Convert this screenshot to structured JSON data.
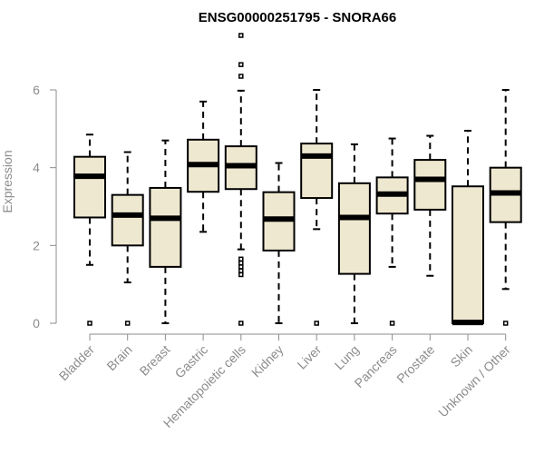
{
  "chart_data": {
    "type": "boxplot",
    "title": "ENSG00000251795 - SNORA66",
    "xlabel": "",
    "ylabel": "Expression",
    "ylim": [
      0,
      7.4
    ],
    "yticks": [
      0,
      2,
      4,
      6
    ],
    "box_fill": "#efe8d0",
    "stroke": "#000000",
    "axis_color": "#8c8c8c",
    "categories": [
      "Bladder",
      "Brain",
      "Breast",
      "Gastric",
      "Hematopoietic cells",
      "Kidney",
      "Liver",
      "Lung",
      "Pancreas",
      "Prostate",
      "Skin",
      "Unknown / Other"
    ],
    "boxes": [
      {
        "whisker_low": 1.5,
        "q1": 2.72,
        "median": 3.78,
        "q3": 4.28,
        "whisker_high": 4.85,
        "outliers": [
          0
        ]
      },
      {
        "whisker_low": 1.05,
        "q1": 2.0,
        "median": 2.78,
        "q3": 3.3,
        "whisker_high": 4.4,
        "outliers": [
          0
        ]
      },
      {
        "whisker_low": 0.0,
        "q1": 1.45,
        "median": 2.7,
        "q3": 3.48,
        "whisker_high": 4.7,
        "outliers": []
      },
      {
        "whisker_low": 2.35,
        "q1": 3.38,
        "median": 4.08,
        "q3": 4.72,
        "whisker_high": 5.7,
        "outliers": []
      },
      {
        "whisker_low": 1.9,
        "q1": 3.45,
        "median": 4.05,
        "q3": 4.55,
        "whisker_high": 5.98,
        "outliers": [
          0,
          1.25,
          1.35,
          1.45,
          1.55,
          1.65,
          6.35,
          6.65,
          7.4
        ]
      },
      {
        "whisker_low": 0.0,
        "q1": 1.87,
        "median": 2.68,
        "q3": 3.37,
        "whisker_high": 4.12,
        "outliers": []
      },
      {
        "whisker_low": 2.42,
        "q1": 3.22,
        "median": 4.3,
        "q3": 4.62,
        "whisker_high": 6.0,
        "outliers": [
          0
        ]
      },
      {
        "whisker_low": 0.0,
        "q1": 1.27,
        "median": 2.72,
        "q3": 3.6,
        "whisker_high": 4.6,
        "outliers": []
      },
      {
        "whisker_low": 1.45,
        "q1": 2.82,
        "median": 3.32,
        "q3": 3.75,
        "whisker_high": 4.75,
        "outliers": [
          0
        ]
      },
      {
        "whisker_low": 1.22,
        "q1": 2.92,
        "median": 3.7,
        "q3": 4.2,
        "whisker_high": 4.82,
        "outliers": []
      },
      {
        "whisker_low": 0.0,
        "q1": 0.0,
        "median": 0.02,
        "q3": 3.52,
        "whisker_high": 4.95,
        "outliers": []
      },
      {
        "whisker_low": 0.88,
        "q1": 2.6,
        "median": 3.35,
        "q3": 4.0,
        "whisker_high": 6.0,
        "outliers": [
          0
        ]
      }
    ]
  }
}
